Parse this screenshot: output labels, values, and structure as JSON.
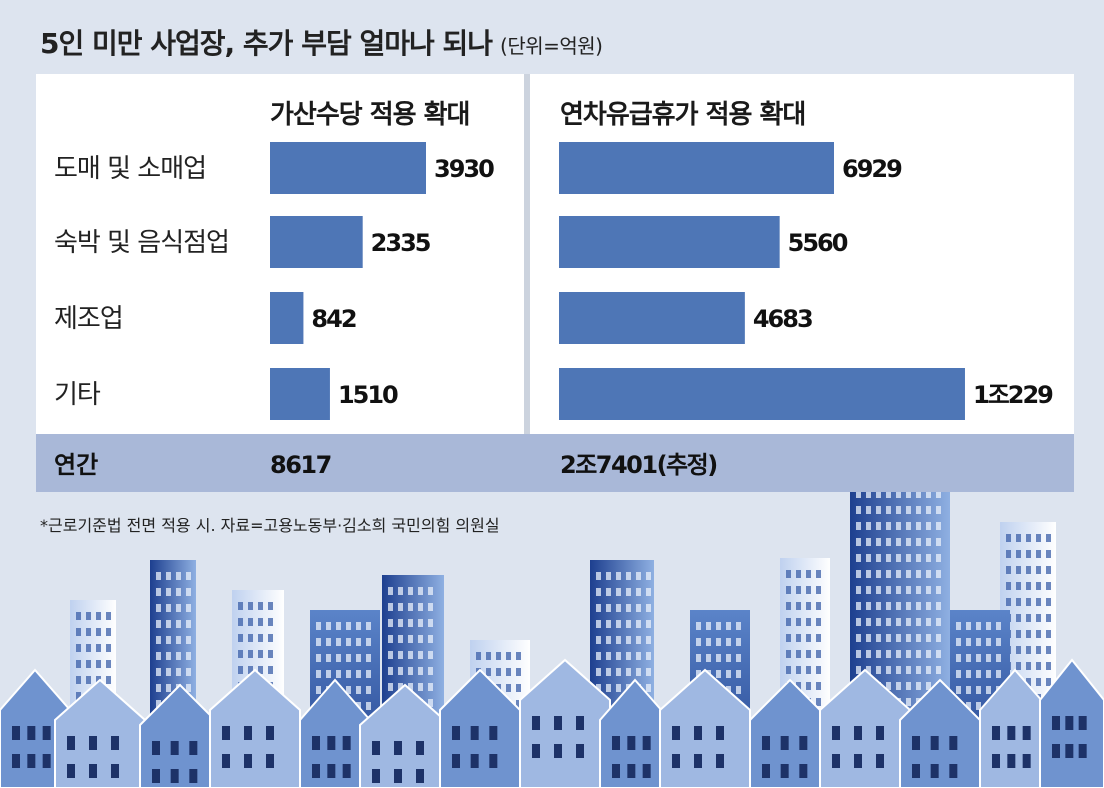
{
  "title": "5인 미만 사업장, 추가 부담 얼마나 되나",
  "unit": "(단위=억원)",
  "footnote": "*근로기준법 전면 적용 시. 자료=고용노동부·김소희 국민의힘 의원실",
  "colors": {
    "bar": "#4e76b6",
    "total_band": "#a9b8d8",
    "background": "#dde4ef"
  },
  "chart_data": {
    "type": "bar",
    "orientation": "horizontal",
    "categories": [
      "도매 및 소매업",
      "숙박 및 음식점업",
      "제조업",
      "기타"
    ],
    "series": [
      {
        "name": "가산수당 적용 확대",
        "values": [
          3930,
          2335,
          842,
          1510
        ],
        "value_labels": [
          "3930",
          "2335",
          "842",
          "1510"
        ],
        "total_label": "8617"
      },
      {
        "name": "연차유급휴가 적용 확대",
        "values": [
          6929,
          5560,
          4683,
          10229
        ],
        "value_labels": [
          "6929",
          "5560",
          "4683",
          "1조229"
        ],
        "total_label": "2조7401(추정)"
      }
    ],
    "total_row_label": "연간",
    "grid": false
  }
}
